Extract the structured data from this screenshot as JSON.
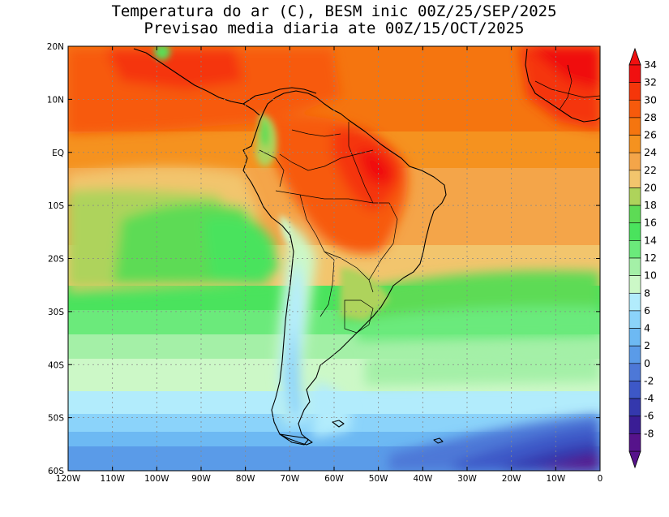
{
  "title_line1": "Temperatura do ar (C), BESM inic 00Z/25/SEP/2025",
  "title_line2": "Previsao media diaria ate 00Z/15/OCT/2025",
  "map": {
    "lon_range": [
      -120,
      0
    ],
    "lat_range": [
      -60,
      20
    ],
    "grid": true,
    "lat_labels": [
      "20N",
      "10N",
      "EQ",
      "10S",
      "20S",
      "30S",
      "40S",
      "50S",
      "60S"
    ],
    "lon_labels": [
      "120W",
      "110W",
      "100W",
      "90W",
      "80W",
      "70W",
      "60W",
      "50W",
      "40W",
      "30W",
      "20W",
      "10W",
      "0"
    ]
  },
  "colorbar": {
    "labels": [
      "34",
      "32",
      "30",
      "28",
      "26",
      "24",
      "22",
      "20",
      "18",
      "16",
      "14",
      "12",
      "10",
      "8",
      "6",
      "4",
      "2",
      "0",
      "-2",
      "-4",
      "-6",
      "-8"
    ],
    "colors": [
      "#f01010",
      "#f5360a",
      "#f75a0c",
      "#f5750f",
      "#f5921f",
      "#f4a549",
      "#f2c56d",
      "#aed35b",
      "#5ddb55",
      "#4ae35d",
      "#6bea7b",
      "#a4f0a7",
      "#ccf8c7",
      "#b2ecfc",
      "#8bd3fa",
      "#6db9f3",
      "#5a9be8",
      "#4d78d7",
      "#3d58c7",
      "#3438ad",
      "#3a1d95",
      "#56138b"
    ]
  }
}
